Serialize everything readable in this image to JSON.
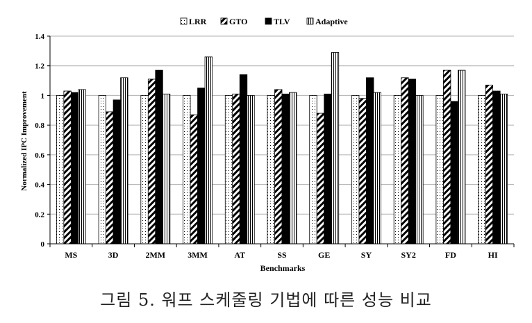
{
  "chart_data": {
    "type": "bar",
    "title": "",
    "xlabel": "Benchmarks",
    "ylabel": "Normalized IPC Improvement",
    "ylim": [
      0,
      1.4
    ],
    "yticks": [
      "0",
      "0.2",
      "0.4",
      "0.6",
      "0.8",
      "1",
      "1.2",
      "1.4"
    ],
    "grid": true,
    "legend_position": "top",
    "categories": [
      "MS",
      "3D",
      "2MM",
      "3MM",
      "AT",
      "SS",
      "GE",
      "SY",
      "SY2",
      "FD",
      "HI"
    ],
    "series": [
      {
        "name": "LRR",
        "pattern": "dots",
        "values": [
          1,
          1,
          1,
          1,
          1,
          1,
          1,
          1,
          1,
          1,
          1
        ]
      },
      {
        "name": "GTO",
        "pattern": "diagonal",
        "values": [
          1.03,
          0.89,
          1.11,
          0.87,
          1.01,
          1.04,
          0.88,
          0.98,
          1.12,
          1.17,
          1.07
        ]
      },
      {
        "name": "TLV",
        "pattern": "solid",
        "values": [
          1.02,
          0.97,
          1.17,
          1.05,
          1.14,
          1.01,
          1.01,
          1.12,
          1.11,
          0.96,
          1.03
        ]
      },
      {
        "name": "Adaptive",
        "pattern": "vertical",
        "values": [
          1.04,
          1.12,
          1.01,
          1.26,
          1.0,
          1.02,
          1.29,
          1.02,
          1.0,
          1.17,
          1.01
        ]
      }
    ]
  },
  "caption": "그림 5. 워프 스케줄링 기법에 따른 성능 비교"
}
